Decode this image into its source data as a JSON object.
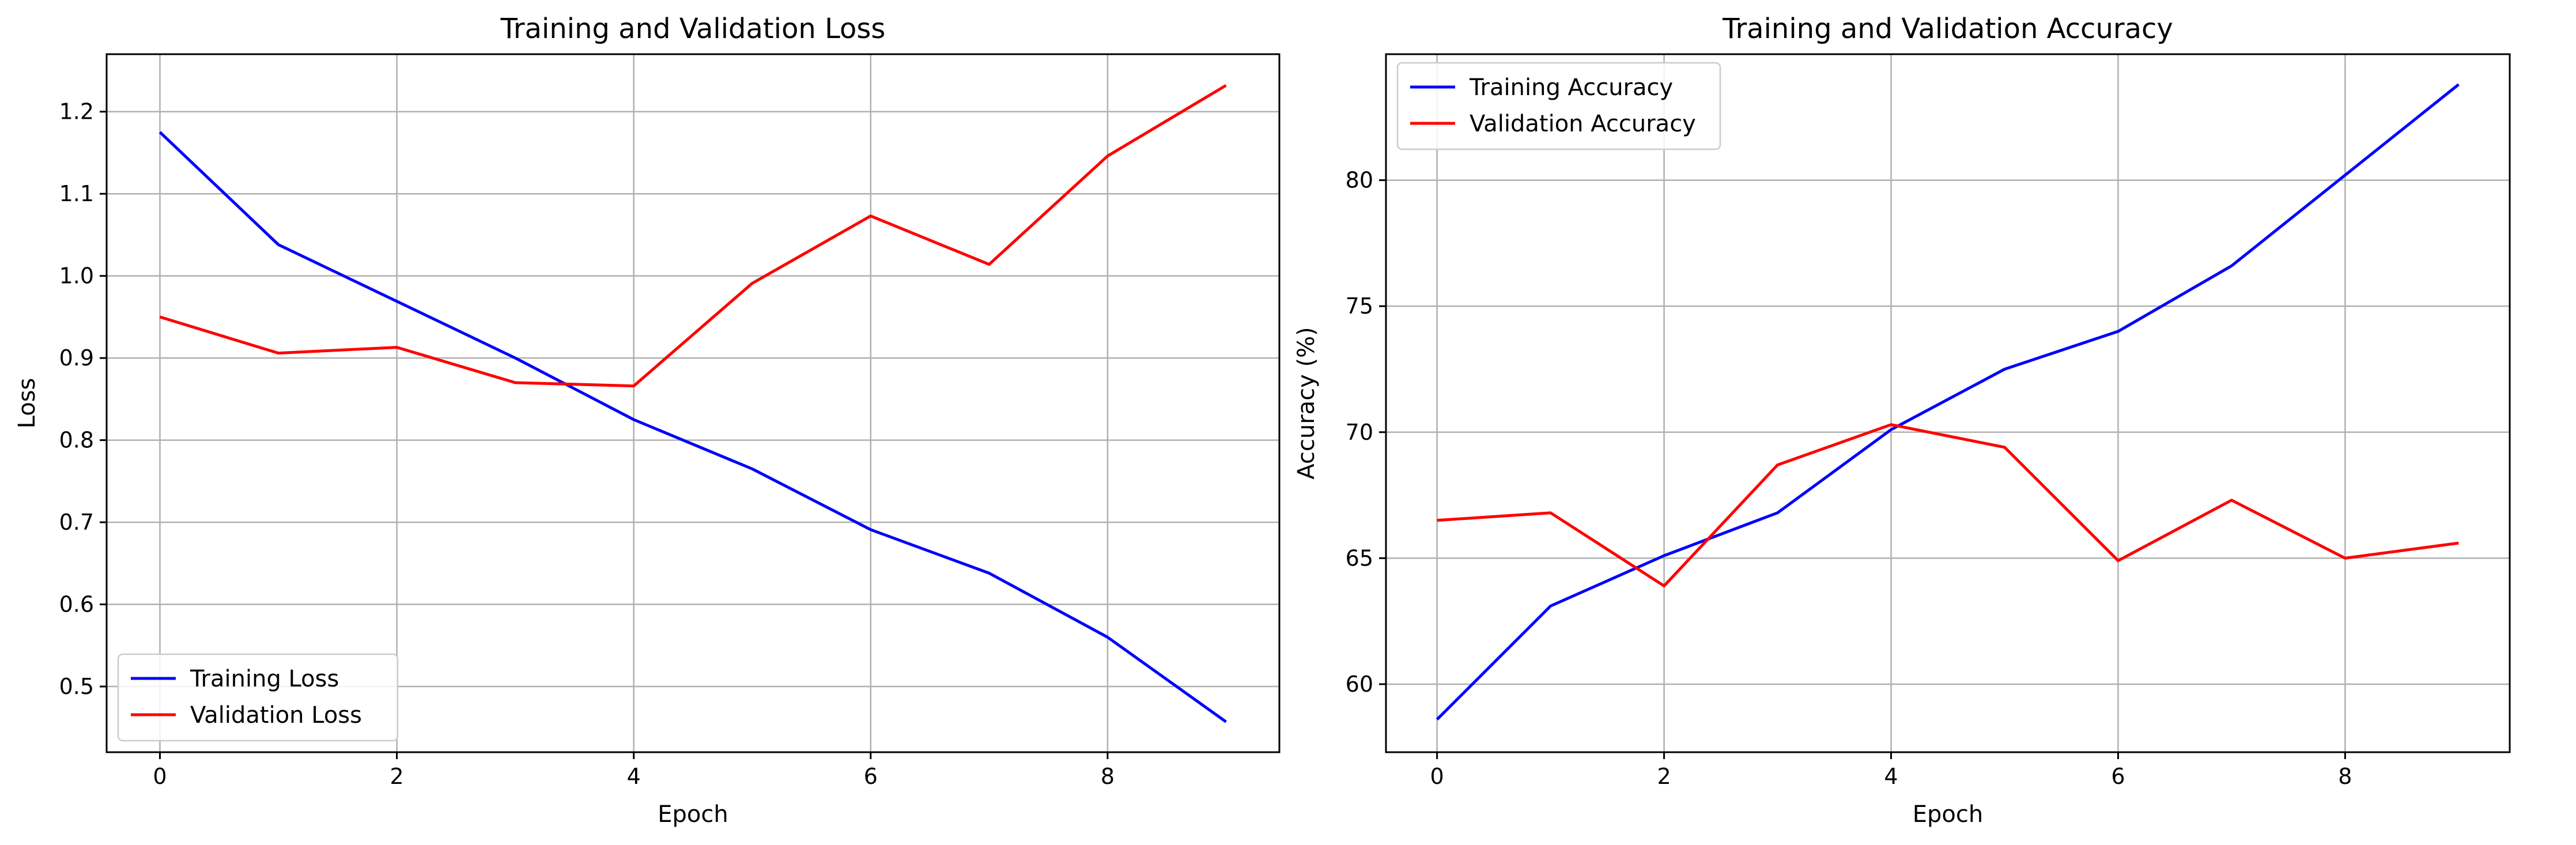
{
  "chart_data": [
    {
      "type": "line",
      "title": "Training and Validation Loss",
      "xlabel": "Epoch",
      "ylabel": "Loss",
      "x": [
        0,
        1,
        2,
        3,
        4,
        5,
        6,
        7,
        8,
        9
      ],
      "xlim": [
        -0.45,
        9.45
      ],
      "ylim": [
        0.42,
        1.27
      ],
      "xticks": [
        0,
        2,
        4,
        6,
        8
      ],
      "yticks": [
        0.5,
        0.6,
        0.7,
        0.8,
        0.9,
        1.0,
        1.1,
        1.2
      ],
      "ytick_labels": [
        "0.5",
        "0.6",
        "0.7",
        "0.8",
        "0.9",
        "1.0",
        "1.1",
        "1.2"
      ],
      "grid": true,
      "legend_position": "lower-left",
      "series": [
        {
          "name": "Training Loss",
          "color": "#0000ff",
          "values": [
            1.175,
            1.038,
            0.969,
            0.9,
            0.825,
            0.765,
            0.691,
            0.638,
            0.56,
            0.457
          ]
        },
        {
          "name": "Validation Loss",
          "color": "#ff0000",
          "values": [
            0.95,
            0.906,
            0.913,
            0.87,
            0.866,
            0.991,
            1.073,
            1.014,
            1.146,
            1.232
          ]
        }
      ]
    },
    {
      "type": "line",
      "title": "Training and Validation Accuracy",
      "xlabel": "Epoch",
      "ylabel": "Accuracy (%)",
      "x": [
        0,
        1,
        2,
        3,
        4,
        5,
        6,
        7,
        8,
        9
      ],
      "xlim": [
        -0.45,
        9.45
      ],
      "ylim": [
        57.3,
        85.0
      ],
      "xticks": [
        0,
        2,
        4,
        6,
        8
      ],
      "yticks": [
        60,
        65,
        70,
        75,
        80
      ],
      "ytick_labels": [
        "60",
        "65",
        "70",
        "75",
        "80"
      ],
      "grid": true,
      "legend_position": "upper-left",
      "series": [
        {
          "name": "Training Accuracy",
          "color": "#0000ff",
          "values": [
            58.6,
            63.1,
            65.1,
            66.8,
            70.1,
            72.5,
            74.0,
            76.6,
            80.2,
            83.8
          ]
        },
        {
          "name": "Validation Accuracy",
          "color": "#ff0000",
          "values": [
            66.5,
            66.8,
            63.9,
            68.7,
            70.3,
            69.4,
            64.9,
            67.3,
            65.0,
            65.6
          ]
        }
      ]
    }
  ]
}
